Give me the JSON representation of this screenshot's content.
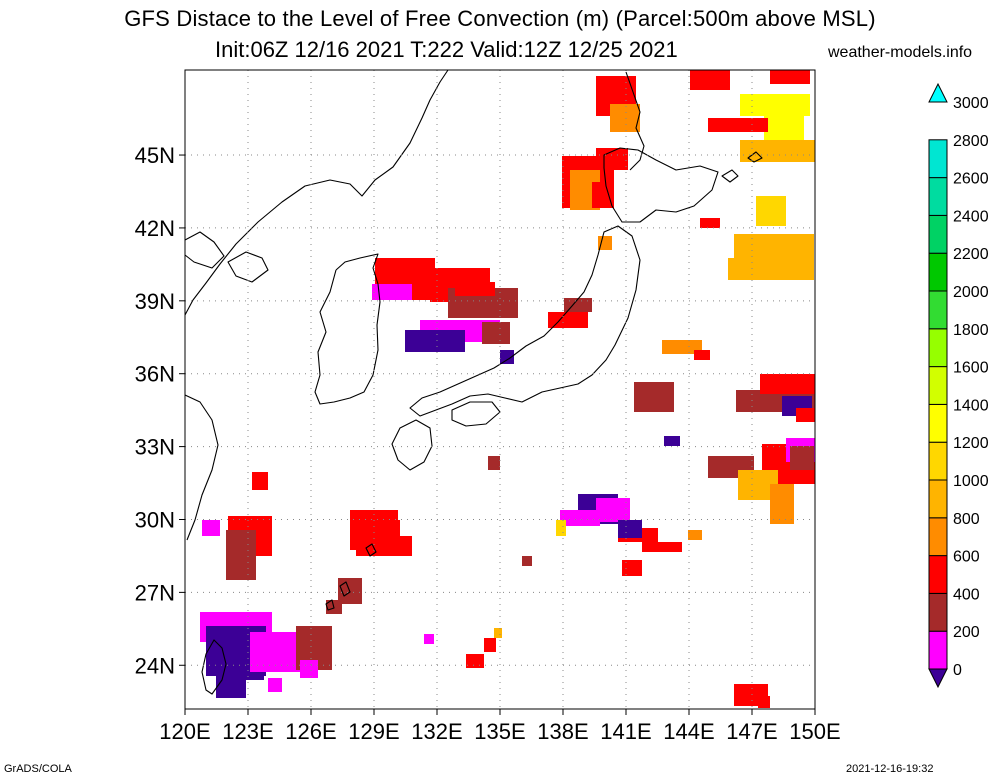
{
  "header": {
    "title_line1": "GFS Distace to the Level of Free Convection (m) (Parcel:500m above MSL)",
    "title_line2": "Init:06Z 12/16 2021 T:222 Valid:12Z 12/25 2021",
    "site": "weather-models.info"
  },
  "footer": {
    "left": "GrADS/COLA",
    "right": "2021-12-16-19:32"
  },
  "map": {
    "lon_range": [
      120,
      150
    ],
    "lat_range": [
      22.2,
      48.5
    ],
    "lon_ticks": [
      "120E",
      "123E",
      "126E",
      "129E",
      "132E",
      "135E",
      "138E",
      "141E",
      "144E",
      "147E",
      "150E"
    ],
    "lat_ticks": [
      "24N",
      "27N",
      "30N",
      "33N",
      "36N",
      "39N",
      "42N",
      "45N"
    ],
    "gridlines": "dotted",
    "colorbar": {
      "levels": [
        "0",
        "200",
        "400",
        "600",
        "800",
        "1000",
        "1200",
        "1400",
        "1600",
        "1800",
        "2000",
        "2200",
        "2400",
        "2600",
        "2800",
        "3000"
      ],
      "colors": [
        "#3c0096",
        "#ff00ff",
        "#a52a2a",
        "#ff0000",
        "#ff8c00",
        "#ffb400",
        "#ffd700",
        "#ffff00",
        "#d2ff00",
        "#96ff00",
        "#32dc32",
        "#00c800",
        "#00d264",
        "#00dca0",
        "#00e6d2",
        "#00ffff"
      ]
    }
  }
}
